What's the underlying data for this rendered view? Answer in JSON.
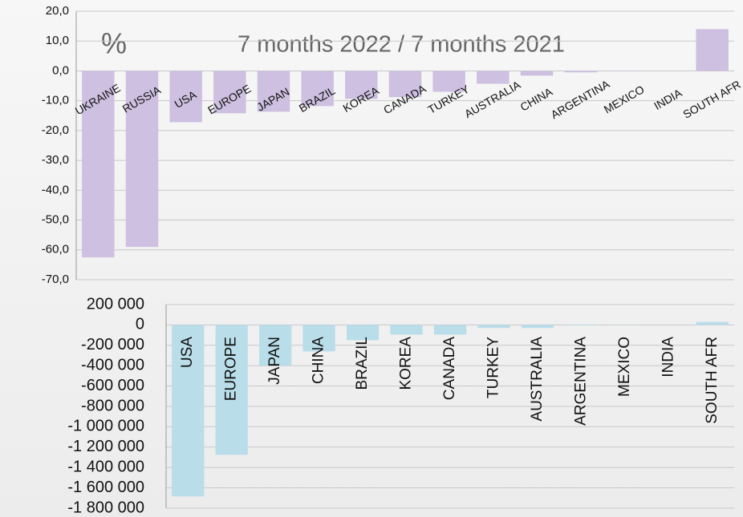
{
  "chart_data": [
    {
      "type": "bar",
      "title": "7 months  2022 / 7 months  2021",
      "annotation": "%",
      "categories": [
        "UKRAINE",
        "RUSSIA",
        "USA",
        "EUROPE",
        "JAPAN",
        "BRAZIL",
        "KOREA",
        "CANADA",
        "TURKEY",
        "AUSTRALIA",
        "CHINA",
        "ARGENTINA",
        "MEXICO",
        "INDIA",
        "SOUTH AFR"
      ],
      "values": [
        -62.5,
        -59,
        -17.2,
        -14.2,
        -13.7,
        -11.8,
        -9.4,
        -8.8,
        -7,
        -4.3,
        -1.6,
        -0.5,
        -0.1,
        0,
        14
      ],
      "color": "#cdc0e0",
      "ylim": [
        -70,
        20
      ],
      "yticks": [
        {
          "value": 20,
          "label": "20,0"
        },
        {
          "value": 10,
          "label": "10,0"
        },
        {
          "value": 0,
          "label": "0,0"
        },
        {
          "value": -10,
          "label": "-10,0"
        },
        {
          "value": -20,
          "label": "-20,0"
        },
        {
          "value": -30,
          "label": "-30,0"
        },
        {
          "value": -40,
          "label": "-40,0"
        },
        {
          "value": -50,
          "label": "-50,0"
        },
        {
          "value": -60,
          "label": "-60,0"
        },
        {
          "value": -70,
          "label": "-70,0"
        }
      ],
      "grid": true
    },
    {
      "type": "bar",
      "categories": [
        "USA",
        "EUROPE",
        "JAPAN",
        "CHINA",
        "BRAZIL",
        "KOREA",
        "CANADA",
        "TURKEY",
        "AUSTRALIA",
        "ARGENTINA",
        "MEXICO",
        "INDIA",
        "SOUTH AFR"
      ],
      "values": [
        -1685000,
        -1275000,
        -400000,
        -260000,
        -150000,
        -95000,
        -95000,
        -30000,
        -30000,
        -5000,
        -2000,
        0,
        30000
      ],
      "color": "#b9dee9",
      "ylim": [
        -1800000,
        200000
      ],
      "yticks": [
        {
          "value": 200000,
          "label": "200 000"
        },
        0,
        {
          "value": -200000,
          "label": "-200 000"
        },
        {
          "value": -400000,
          "label": "-400 000"
        },
        {
          "value": -600000,
          "label": "-600 000"
        },
        {
          "value": -800000,
          "label": "-800 000"
        },
        {
          "value": -1000000,
          "label": "-1 000 000"
        },
        {
          "value": -1200000,
          "label": "-1 200 000"
        },
        {
          "value": -1400000,
          "label": "-1 400 000"
        },
        {
          "value": -1600000,
          "label": "-1 600 000"
        },
        {
          "value": -1800000,
          "label": "-1 800 000"
        }
      ],
      "grid": true
    }
  ]
}
